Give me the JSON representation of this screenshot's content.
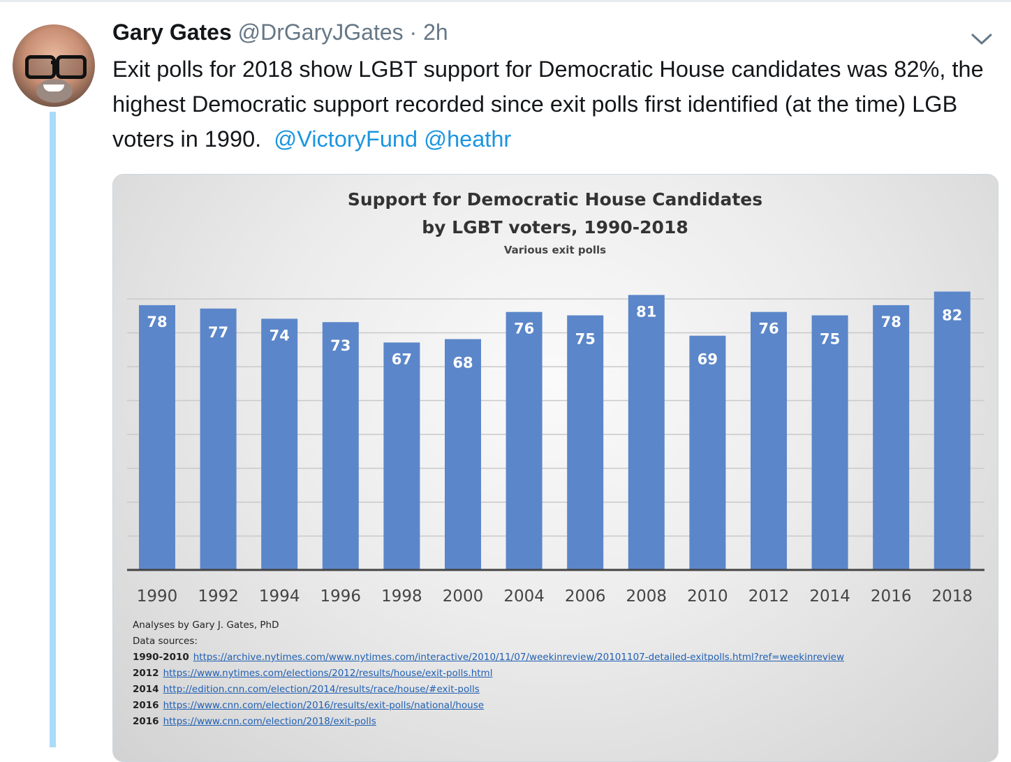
{
  "tweet": {
    "display_name": "Gary Gates",
    "handle": "@DrGaryJGates",
    "separator": "·",
    "time": "2h",
    "text_line": "Exit polls for 2018 show LGBT support for Democratic House candidates was 82%, the highest Democratic support recorded since exit polls first identified (at the time) LGB voters in 1990.",
    "mention_1": "@VictoryFund",
    "mention_2": "@heathr",
    "icons": {
      "menu": "chevron-down-icon",
      "avatar": "avatar"
    },
    "colors": {
      "name": "#14171a",
      "secondary": "#657786",
      "link": "#1b95e0",
      "thread": "#a9dcf8"
    }
  },
  "chart_data": {
    "type": "bar",
    "title_line1": "Support for Democratic House Candidates",
    "title_line2": "by LGBT voters, 1990-2018",
    "subtitle": "Various exit polls",
    "categories": [
      "1990",
      "1992",
      "1994",
      "1996",
      "1998",
      "2000",
      "2004",
      "2006",
      "2008",
      "2010",
      "2012",
      "2014",
      "2016",
      "2018"
    ],
    "values": [
      78,
      77,
      74,
      73,
      67,
      68,
      76,
      75,
      81,
      69,
      76,
      75,
      78,
      82
    ],
    "ylim": [
      0,
      82
    ],
    "grid": true,
    "bar_color": "#5b86c9"
  },
  "notes": {
    "credit": "Analyses by Gary J. Gates, PhD",
    "sources_label": "Data sources:",
    "sources": [
      {
        "years": "1990-2010",
        "url": "https://archive.nytimes.com/www.nytimes.com/interactive/2010/11/07/weekinreview/20101107-detailed-exitpolls.html?ref=weekinreview"
      },
      {
        "years": "2012",
        "url": "https://www.nytimes.com/elections/2012/results/house/exit-polls.html"
      },
      {
        "years": "2014",
        "url": "http://edition.cnn.com/election/2014/results/race/house/#exit-polls"
      },
      {
        "years": "2016",
        "url": "https://www.cnn.com/election/2016/results/exit-polls/national/house"
      },
      {
        "years": "2016",
        "url": "https://www.cnn.com/election/2018/exit-polls"
      }
    ]
  }
}
